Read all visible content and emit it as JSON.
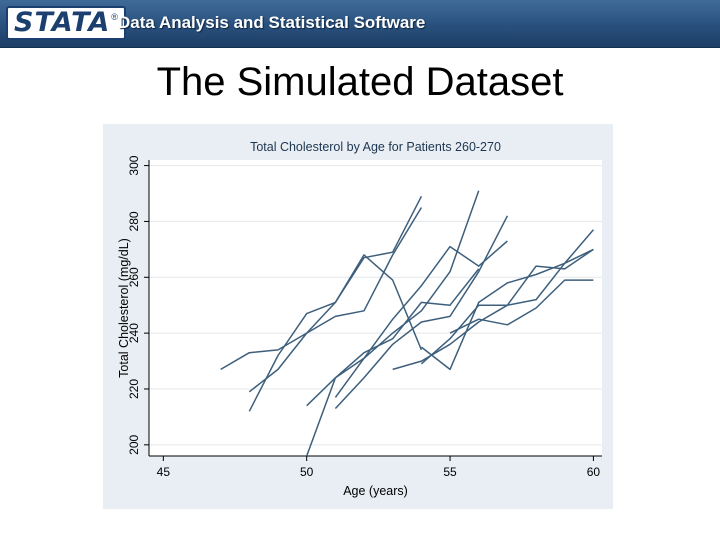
{
  "header": {
    "logo_text": "STATA",
    "registered_mark": "®",
    "tagline": "Data Analysis and Statistical Software"
  },
  "slide": {
    "title": "The Simulated Dataset"
  },
  "colors": {
    "banner": "#29507d",
    "chart_background": "#e8eef3",
    "line": "#3d5f7c"
  },
  "chart_data": {
    "type": "line",
    "title": "Total Cholesterol by Age for Patients 260-270",
    "xlabel": "Age (years)",
    "ylabel": "Total Cholesterol (mg/dL)",
    "xlim": [
      44.5,
      60.3
    ],
    "ylim": [
      196,
      302
    ],
    "xticks": [
      45,
      50,
      55,
      60
    ],
    "yticks": [
      200,
      220,
      240,
      260,
      280,
      300
    ],
    "grid": "horizontal",
    "series": [
      {
        "x": [
          47,
          48,
          49,
          50,
          51,
          52,
          53,
          54
        ],
        "y": [
          227,
          233,
          234,
          240,
          251,
          268,
          259,
          234
        ]
      },
      {
        "x": [
          48,
          49,
          50,
          51,
          52,
          53,
          54
        ],
        "y": [
          212,
          232,
          247,
          251,
          267,
          269,
          289
        ]
      },
      {
        "x": [
          48,
          49,
          50,
          51,
          52,
          53,
          54
        ],
        "y": [
          219,
          227,
          240,
          246,
          248,
          268,
          285
        ]
      },
      {
        "x": [
          50,
          51,
          52,
          53,
          54,
          55,
          56
        ],
        "y": [
          214,
          224,
          231,
          240,
          248,
          262,
          291
        ]
      },
      {
        "x": [
          50,
          51,
          52,
          53,
          54,
          55,
          56
        ],
        "y": [
          196,
          224,
          233,
          238,
          251,
          250,
          263
        ]
      },
      {
        "x": [
          51,
          52,
          53,
          54,
          55,
          56,
          57
        ],
        "y": [
          213,
          224,
          236,
          244,
          246,
          262,
          282
        ]
      },
      {
        "x": [
          51,
          52,
          53,
          54,
          55,
          56,
          57
        ],
        "y": [
          217,
          231,
          245,
          257,
          271,
          264,
          273
        ]
      },
      {
        "x": [
          53,
          54,
          55,
          56,
          57,
          58,
          59,
          60
        ],
        "y": [
          227,
          230,
          236,
          244,
          250,
          252,
          265,
          277
        ]
      },
      {
        "x": [
          54,
          55,
          56,
          57,
          58,
          59,
          60
        ],
        "y": [
          229,
          238,
          250,
          250,
          264,
          263,
          270
        ]
      },
      {
        "x": [
          54,
          55,
          56,
          57,
          58,
          59,
          60
        ],
        "y": [
          235,
          227,
          251,
          258,
          261,
          265,
          270
        ]
      },
      {
        "x": [
          55,
          56,
          57,
          58,
          59,
          60
        ],
        "y": [
          240,
          245,
          243,
          249,
          259,
          259
        ]
      }
    ]
  }
}
